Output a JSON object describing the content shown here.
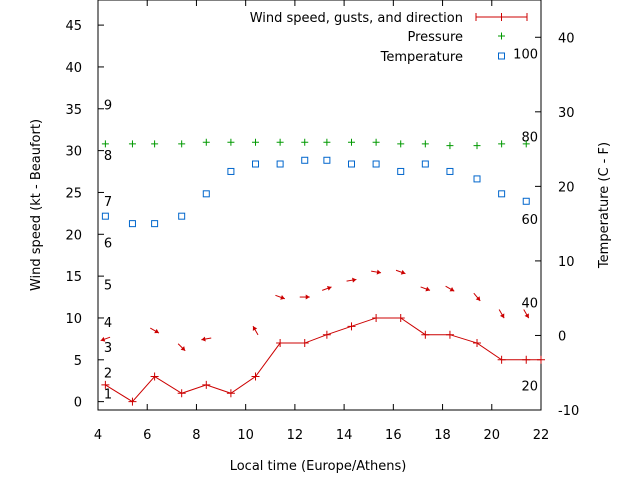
{
  "chart_data": {
    "type": "line",
    "xlabel": "Local time (Europe/Athens)",
    "ylabel": "Wind speed (kt - Beaufort)",
    "y2label": "Temperature (C - F)",
    "xlim": [
      4,
      22
    ],
    "ylim": [
      -1,
      48
    ],
    "y2lim": [
      -10,
      45
    ],
    "x_ticks": [
      "4",
      "6",
      "8",
      "10",
      "12",
      "14",
      "16",
      "18",
      "20",
      "22"
    ],
    "y_ticks": [
      "0",
      "5",
      "10",
      "15",
      "20",
      "25",
      "30",
      "35",
      "40",
      "45"
    ],
    "y2_ticks": [
      "-10",
      "0",
      "10",
      "20",
      "30",
      "40"
    ],
    "beaufort_labels": [
      {
        "value": 1,
        "label": "1"
      },
      {
        "value": 3.5,
        "label": "2"
      },
      {
        "value": 6.5,
        "label": "3"
      },
      {
        "value": 9.5,
        "label": "4"
      },
      {
        "value": 14,
        "label": "5"
      },
      {
        "value": 19,
        "label": "6"
      },
      {
        "value": 24,
        "label": "7"
      },
      {
        "value": 29.5,
        "label": "8"
      },
      {
        "value": 35.5,
        "label": "9"
      }
    ],
    "fahrenheit_labels": [
      {
        "value": -6.7,
        "label": "20"
      },
      {
        "value": 4.4,
        "label": "40"
      },
      {
        "value": 15.6,
        "label": "60"
      },
      {
        "value": 26.7,
        "label": "80"
      },
      {
        "value": 37.8,
        "label": "100"
      }
    ],
    "legend": {
      "position": "top-right",
      "entries": [
        "Wind speed, gusts, and direction",
        "Pressure",
        "Temperature"
      ]
    },
    "colors": {
      "wind": "#cc0000",
      "pressure": "#009900",
      "temperature": "#0066cc"
    },
    "wind": {
      "name": "Wind speed, gusts, and direction",
      "x": [
        4.3,
        5.4,
        6.3,
        7.4,
        8.4,
        9.4,
        10.4,
        11.4,
        12.4,
        13.3,
        14.3,
        15.3,
        16.3,
        17.3,
        18.3,
        19.4,
        20.4,
        21.4,
        22
      ],
      "y": [
        2,
        0,
        3,
        1,
        2,
        1,
        3,
        7,
        7,
        8,
        9,
        10,
        10,
        8,
        8,
        7,
        5,
        5,
        5
      ],
      "direction_deg": [
        70,
        null,
        300,
        315,
        80,
        null,
        150,
        290,
        270,
        250,
        260,
        280,
        290,
        290,
        300,
        320,
        330,
        330
      ]
    },
    "pressure": {
      "name": "Pressure",
      "x": [
        4.3,
        5.4,
        6.3,
        7.4,
        8.4,
        9.4,
        10.4,
        11.4,
        12.4,
        13.3,
        14.3,
        15.3,
        16.3,
        17.3,
        18.3,
        19.4,
        20.4,
        21.4
      ],
      "y": [
        30.8,
        30.8,
        30.8,
        30.8,
        31,
        31,
        31,
        31,
        31,
        31,
        31,
        31,
        30.8,
        30.8,
        30.6,
        30.6,
        30.8,
        30.8
      ]
    },
    "temperature": {
      "name": "Temperature",
      "unit_axis": "right",
      "x": [
        4.3,
        5.4,
        6.3,
        7.4,
        8.4,
        9.4,
        10.4,
        11.4,
        12.4,
        13.3,
        14.3,
        15.3,
        16.3,
        17.3,
        18.3,
        19.4,
        20.4,
        21.4
      ],
      "y": [
        16,
        15,
        15,
        16,
        19,
        22,
        23,
        23,
        23.5,
        23.5,
        23,
        23,
        22,
        23,
        22,
        21,
        19,
        18
      ]
    }
  }
}
